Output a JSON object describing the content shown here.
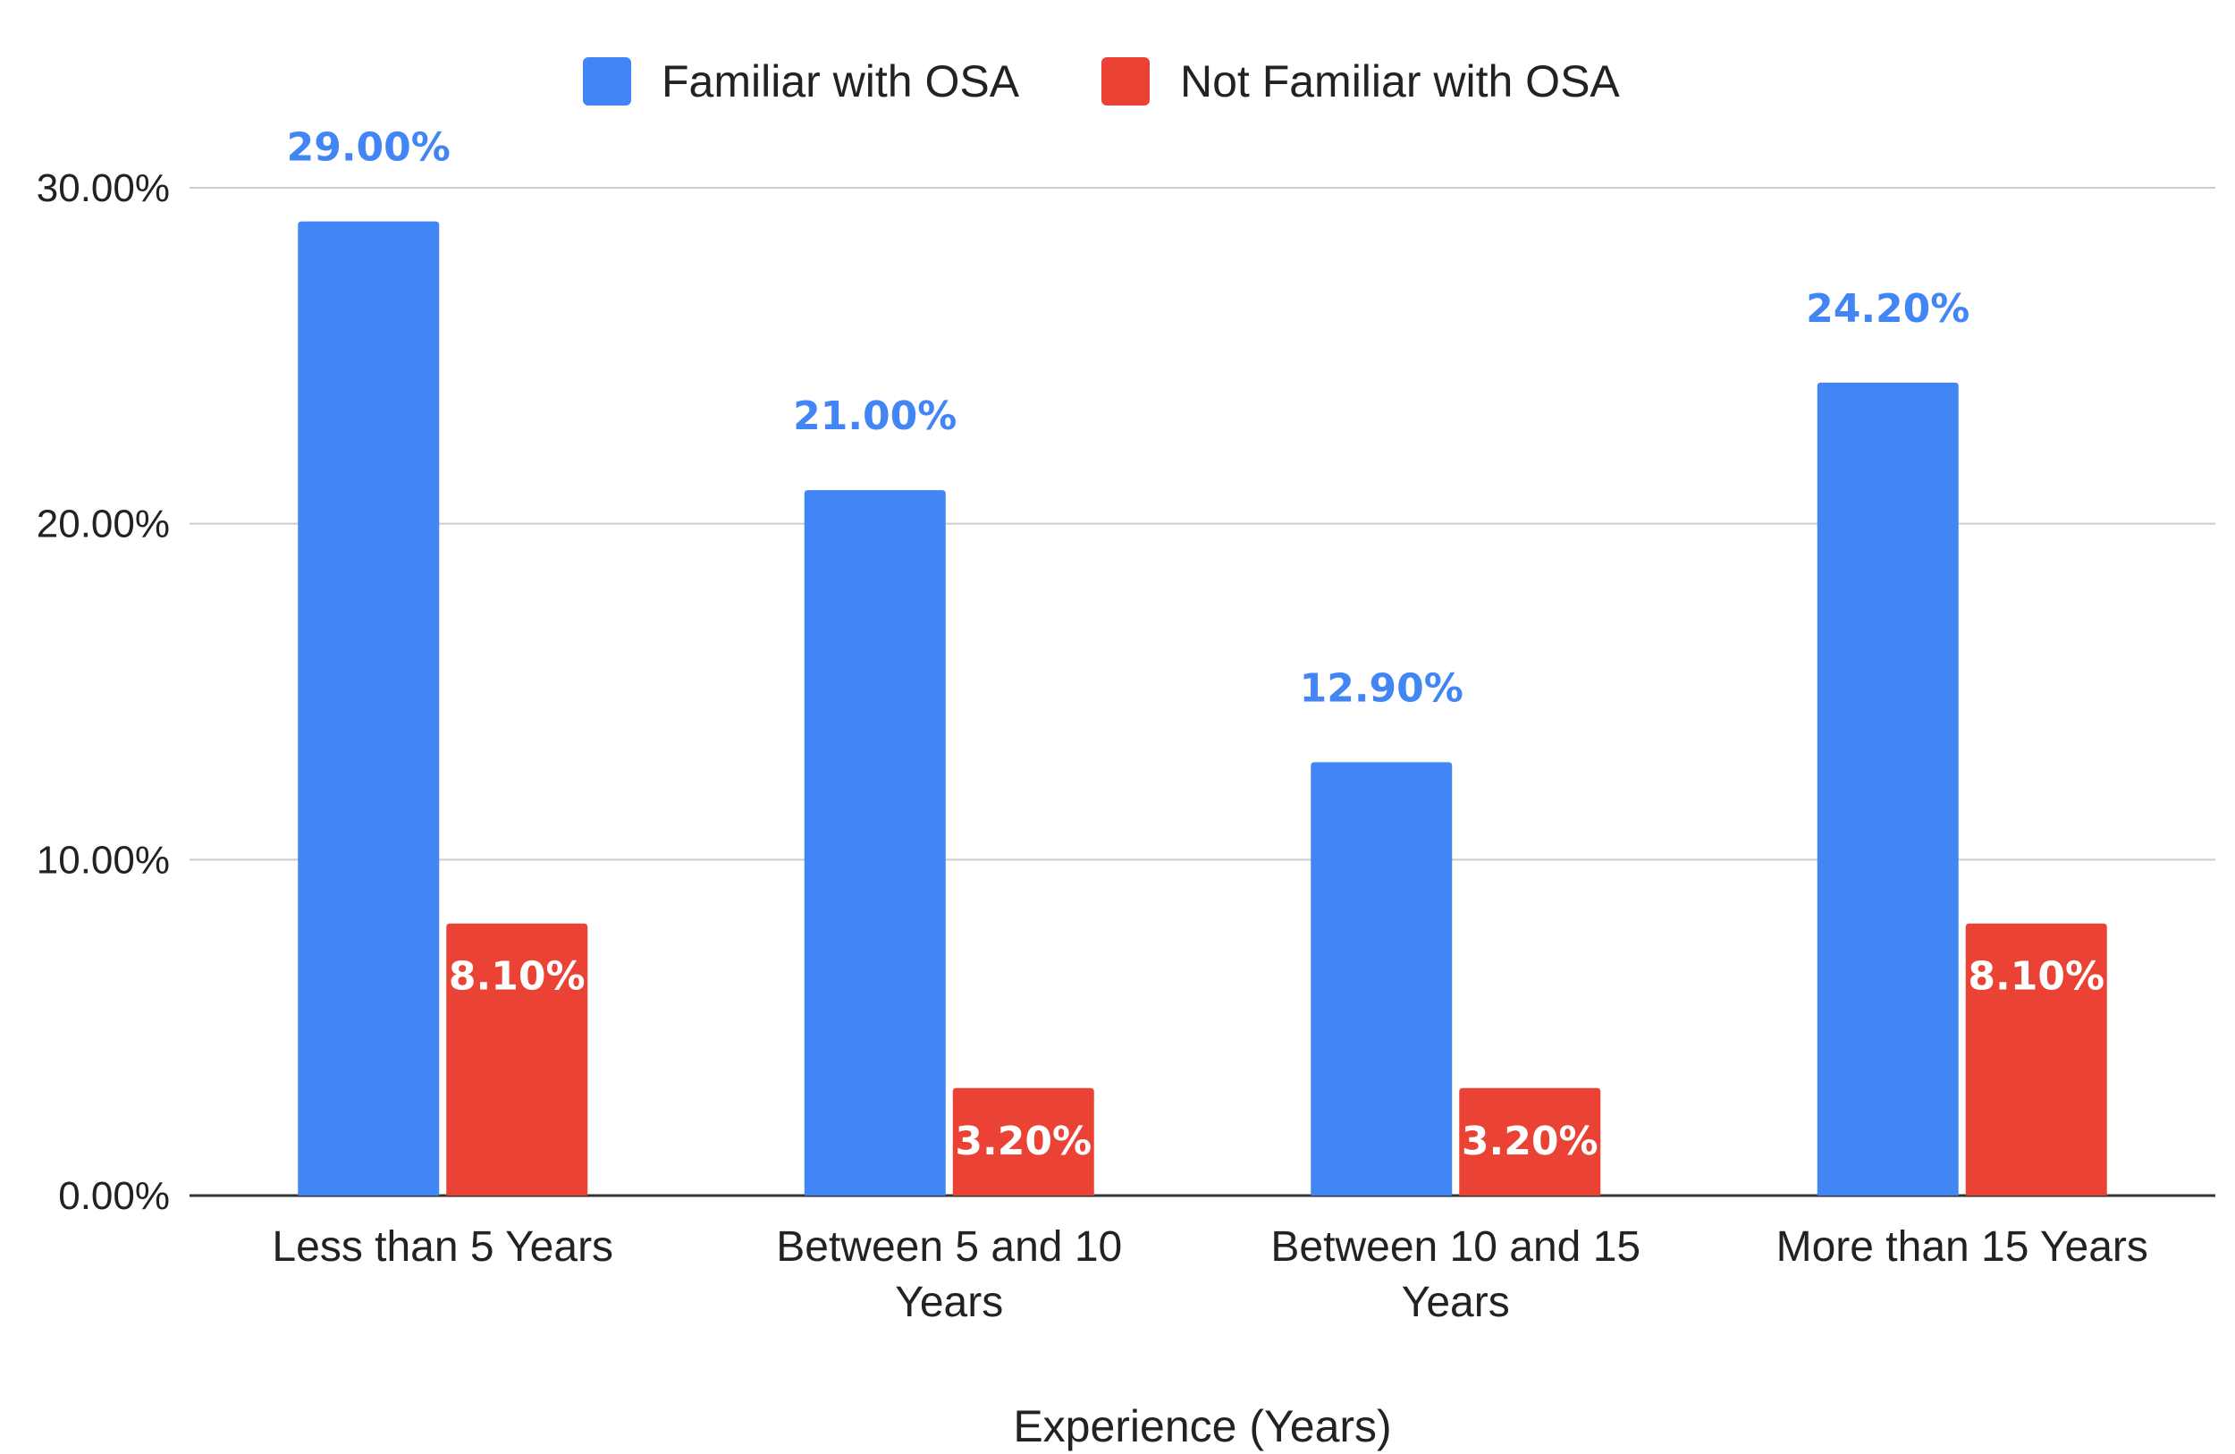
{
  "chart_data": {
    "type": "bar",
    "title": "",
    "xlabel": "Experience (Years)",
    "ylabel": "",
    "categories": [
      [
        "Less than 5 Years"
      ],
      [
        "Between 5 and 10",
        "Years"
      ],
      [
        "Between 10 and 15",
        "Years"
      ],
      [
        "More than 15 Years"
      ]
    ],
    "series": [
      {
        "name": "Familiar with OSA",
        "color": "#4285F4",
        "values": [
          29.0,
          21.0,
          12.9,
          24.2
        ],
        "labels": [
          "29.00%",
          "21.00%",
          "12.90%",
          "24.20%"
        ],
        "label_position": "above",
        "label_color": "#4285F4"
      },
      {
        "name": "Not Familiar with OSA",
        "color": "#EA4335",
        "values": [
          8.1,
          3.2,
          3.2,
          8.1
        ],
        "labels": [
          "8.10%",
          "3.20%",
          "3.20%",
          "8.10%"
        ],
        "label_position": "inside",
        "label_color": "#ffffff"
      }
    ],
    "ylim": [
      0,
      30
    ],
    "yticks": [
      0,
      10,
      20,
      30
    ],
    "ytick_labels": [
      "0.00%",
      "10.00%",
      "20.00%",
      "30.00%"
    ],
    "grid": true,
    "legend_position": "top"
  }
}
